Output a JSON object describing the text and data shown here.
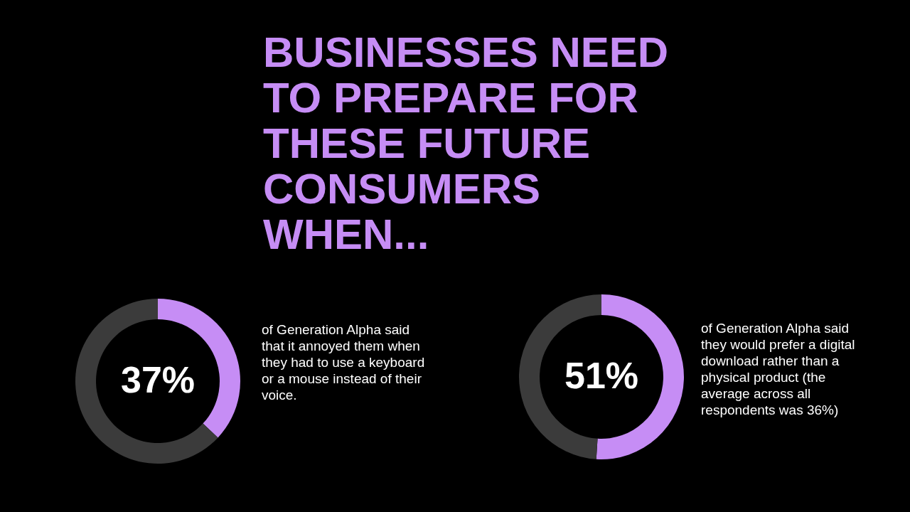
{
  "chart_data": [
    {
      "type": "other",
      "title": "BUSINESSES NEED TO PREPARE FOR THESE FUTURE CONSUMERS WHEN..."
    },
    {
      "type": "donut",
      "categories": [
        null,
        null
      ],
      "values": [
        37,
        63
      ],
      "colors": [
        "#c68df5",
        "#3b3b3b"
      ],
      "annotations": [
        "37%",
        "of Generation Alpha said that it annoyed them when they had to use a keyboard or a mouse instead of their voice."
      ]
    },
    {
      "type": "donut",
      "categories": [
        null,
        null
      ],
      "values": [
        51,
        49
      ],
      "colors": [
        "#c68df5",
        "#3b3b3b"
      ],
      "annotations": [
        "51%",
        "of Generation Alpha said they would prefer a digital download rather than a physical product (the average across all respondents was 36%)"
      ]
    }
  ]
}
